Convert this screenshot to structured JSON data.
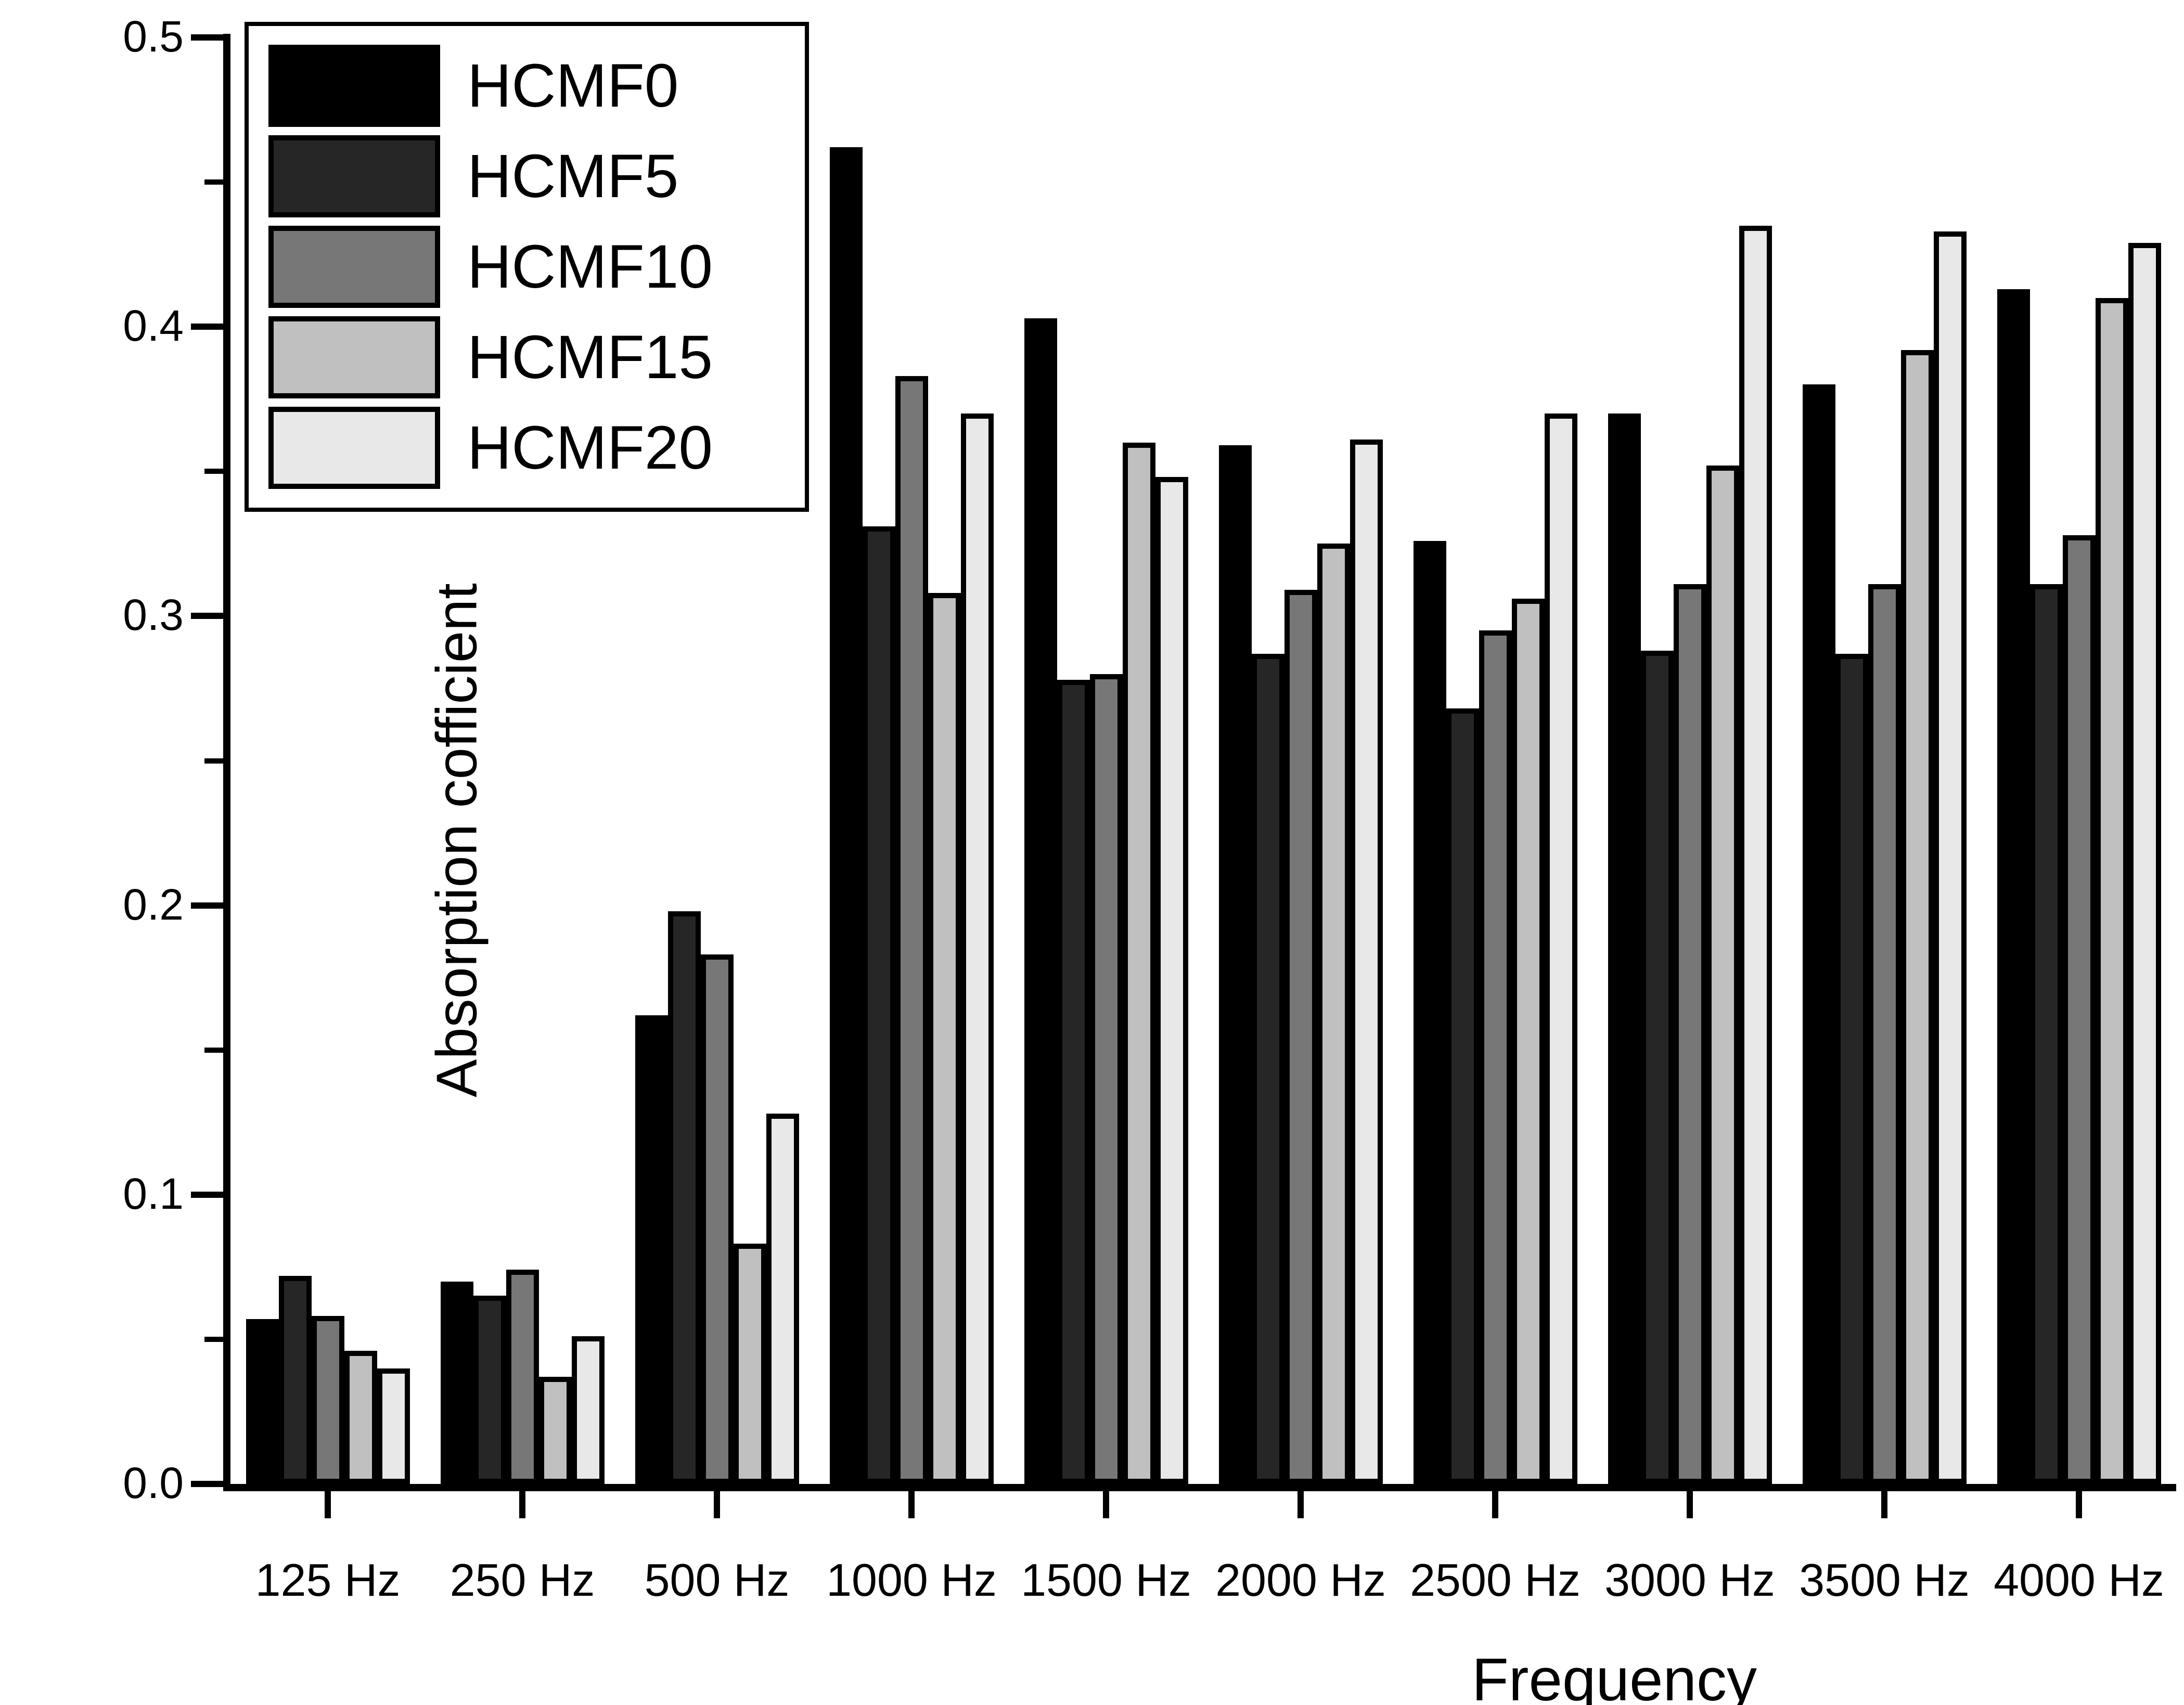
{
  "figure": {
    "ylabel": "Absorption cofficient",
    "xlabel": "Frequency"
  },
  "chart_data": {
    "type": "bar",
    "title": "",
    "xlabel": "Frequency",
    "ylabel": "Absorption cofficient",
    "ylim": [
      0,
      0.5
    ],
    "y_major_ticks": [
      0.0,
      0.1,
      0.2,
      0.3,
      0.4,
      0.5
    ],
    "y_minor_step": 0.05,
    "grid": false,
    "legend_position": "top-left",
    "categories": [
      "125 Hz",
      "250 Hz",
      "500 Hz",
      "1000 Hz",
      "1500 Hz",
      "2000 Hz",
      "2500 Hz",
      "3000 Hz",
      "3500 Hz",
      "4000 Hz"
    ],
    "series": [
      {
        "name": "HCMF0",
        "color": "#000000",
        "values": [
          0.057,
          0.07,
          0.162,
          0.462,
          0.403,
          0.359,
          0.326,
          0.37,
          0.38,
          0.413
        ]
      },
      {
        "name": "HCMF5",
        "color": "#262626",
        "values": [
          0.072,
          0.065,
          0.198,
          0.331,
          0.278,
          0.287,
          0.268,
          0.288,
          0.287,
          0.311
        ]
      },
      {
        "name": "HCMF10",
        "color": "#777777",
        "values": [
          0.058,
          0.074,
          0.183,
          0.383,
          0.28,
          0.309,
          0.295,
          0.311,
          0.311,
          0.328
        ]
      },
      {
        "name": "HCMF15",
        "color": "#c0c0c0",
        "values": [
          0.046,
          0.037,
          0.083,
          0.308,
          0.36,
          0.325,
          0.306,
          0.352,
          0.392,
          0.41
        ]
      },
      {
        "name": "HCMF20",
        "color": "#e8e8e8",
        "values": [
          0.04,
          0.051,
          0.128,
          0.37,
          0.348,
          0.361,
          0.37,
          0.435,
          0.433,
          0.429
        ]
      }
    ]
  }
}
